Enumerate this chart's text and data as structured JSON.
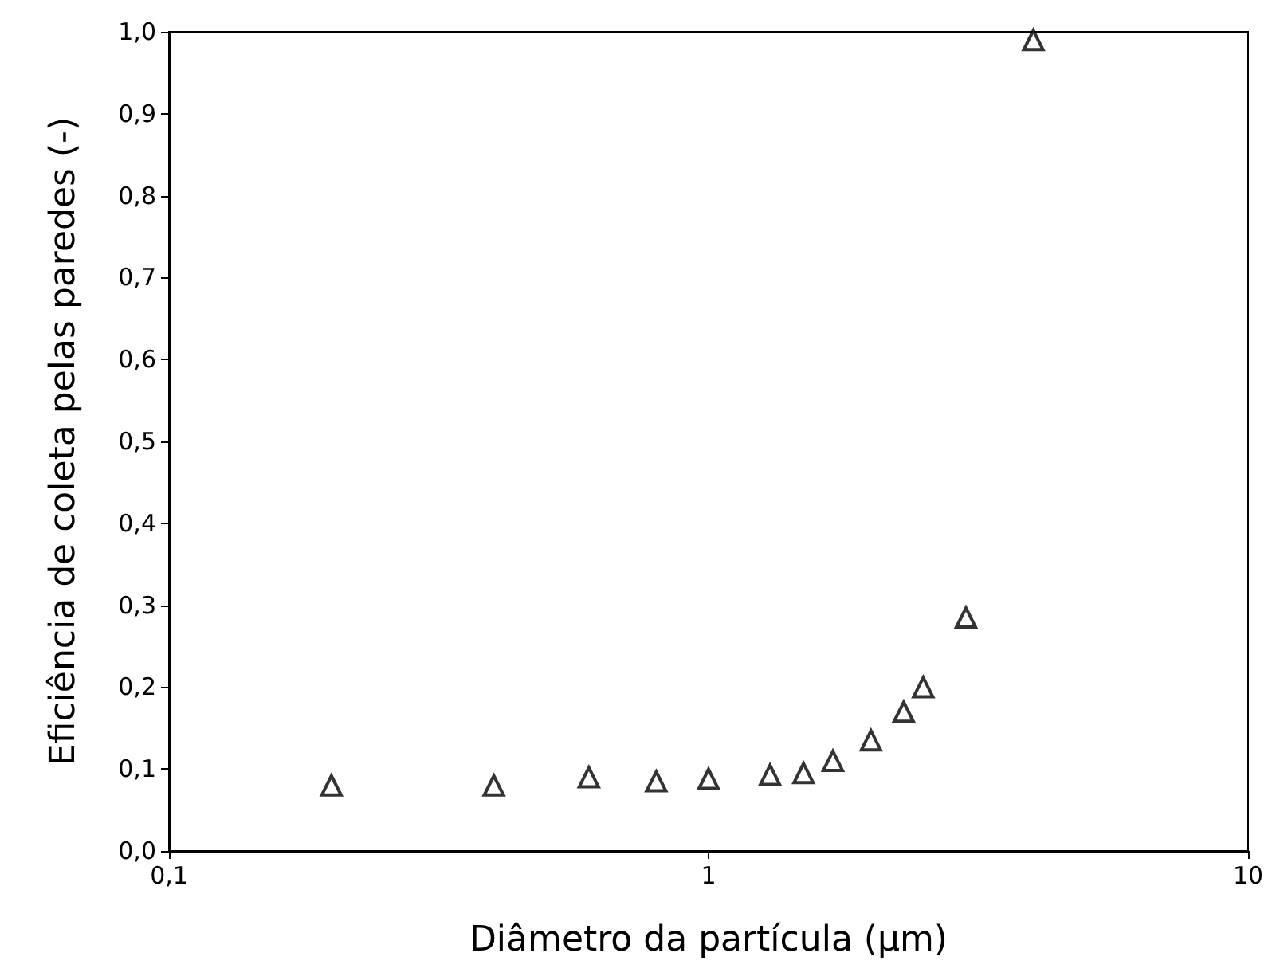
{
  "chart_data": {
    "type": "scatter",
    "xlabel": "Diâmetro da partícula (μm)",
    "ylabel": "Eficiência de coleta pelas paredes (-)",
    "log": "x",
    "grid": false,
    "marker": "triangle",
    "xlim": [
      0.1,
      10
    ],
    "xticks": [
      {
        "value": 0.1,
        "label": "0,1"
      },
      1,
      10
    ],
    "ylim": [
      0,
      1
    ],
    "yticks": [
      {
        "value": 0,
        "label": "0,0"
      },
      {
        "value": 0.1,
        "label": "0,1"
      },
      {
        "value": 0.2,
        "label": "0,2"
      },
      {
        "value": 0.3,
        "label": "0,3"
      },
      {
        "value": 0.4,
        "label": "0,4"
      },
      {
        "value": 0.5,
        "label": "0,5"
      },
      {
        "value": 0.6,
        "label": "0,6"
      },
      {
        "value": 0.7,
        "label": "0,7"
      },
      {
        "value": 0.8,
        "label": "0,8"
      },
      {
        "value": 0.9,
        "label": "0,9"
      },
      {
        "value": 1,
        "label": "1,0"
      }
    ],
    "series": [
      {
        "color": "#000000",
        "x": [
          0.2,
          0.4,
          0.6,
          0.8,
          1.0,
          1.3,
          1.5,
          1.7,
          2.0,
          2.3,
          2.5,
          3.0,
          4.0
        ],
        "values": [
          0.08,
          0.08,
          0.09,
          0.085,
          0.088,
          0.093,
          0.095,
          0.11,
          0.135,
          0.17,
          0.2,
          0.285,
          0.99
        ]
      }
    ]
  }
}
